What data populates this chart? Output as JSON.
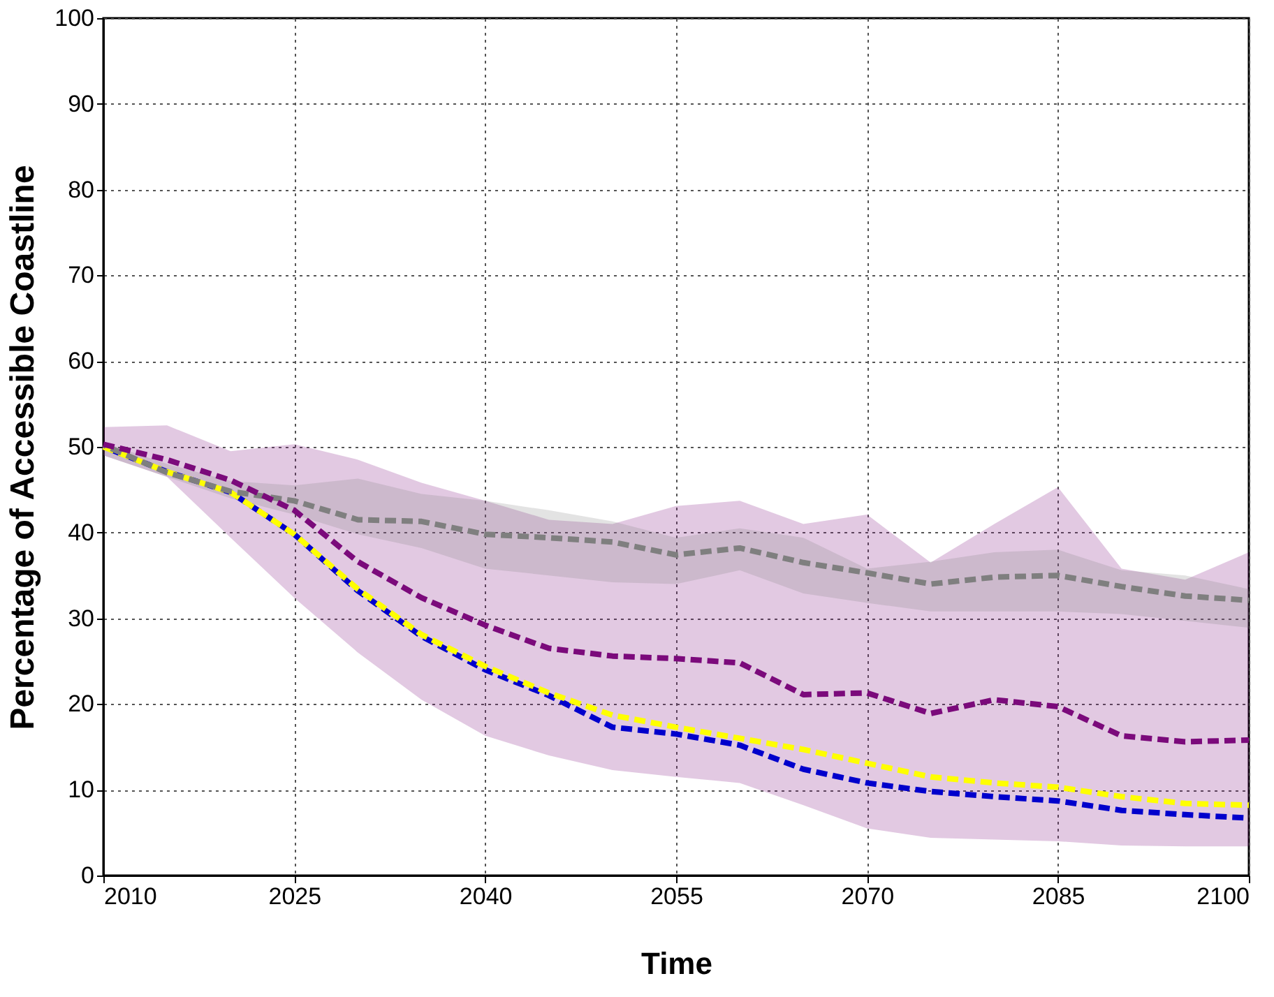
{
  "chart_data": {
    "type": "line",
    "xlabel": "Time",
    "ylabel": "Percentage of Accessible Coastline",
    "x": [
      2010,
      2015,
      2020,
      2025,
      2030,
      2035,
      2040,
      2045,
      2050,
      2055,
      2060,
      2065,
      2070,
      2075,
      2080,
      2085,
      2090,
      2095,
      2100
    ],
    "xlim": [
      2010,
      2100
    ],
    "xticks": [
      2010,
      2025,
      2040,
      2055,
      2070,
      2085,
      2100
    ],
    "ylim": [
      0,
      100
    ],
    "yticks": [
      0,
      10,
      20,
      30,
      40,
      50,
      60,
      70,
      80,
      90,
      100
    ],
    "grid": true,
    "line_style": "dashed",
    "series": [
      {
        "color": "#7b0a7b",
        "values": [
          50.3,
          48.5,
          46.1,
          42.6,
          36.6,
          32.4,
          29.2,
          26.5,
          25.6,
          25.3,
          24.8,
          21.1,
          21.3,
          18.9,
          20.5,
          19.7,
          16.3,
          15.6,
          15.8
        ],
        "lower": [
          49,
          46.5,
          39.4,
          32.4,
          26,
          20.5,
          16.3,
          14,
          12.3,
          11.5,
          10.8,
          8.2,
          5.5,
          4.4,
          4.2,
          4,
          3.5,
          3.4,
          3.4
        ],
        "upper": [
          52.3,
          52.5,
          49.5,
          50.3,
          48.5,
          45.8,
          43.7,
          41.5,
          41,
          43.1,
          43.7,
          41,
          42.1,
          36.5,
          41,
          45.3,
          35.8,
          34.5,
          37.7
        ]
      },
      {
        "color": "#7f7f7f",
        "values": [
          50.2,
          47,
          44.8,
          43.7,
          41.5,
          41.3,
          39.8,
          39.4,
          38.9,
          37.4,
          38.2,
          36.5,
          35.3,
          34,
          34.8,
          35,
          33.7,
          32.6,
          32.1
        ],
        "lower": [
          49,
          46.5,
          44,
          42.1,
          39.8,
          38.2,
          35.8,
          35,
          34.2,
          34,
          35.6,
          32.9,
          31.8,
          30.8,
          30.8,
          30.8,
          30.5,
          29.7,
          28.9
        ],
        "upper": [
          50.5,
          48,
          46,
          45.5,
          46.3,
          44.5,
          43.7,
          42.6,
          41.3,
          39.4,
          40.5,
          39.4,
          35.8,
          36.6,
          37.7,
          38,
          35.6,
          35,
          33.4
        ]
      },
      {
        "color": "#ffff00",
        "values": [
          50,
          47.1,
          44.7,
          39.8,
          33.4,
          28.1,
          24.4,
          21.3,
          18.7,
          17.3,
          16,
          14.7,
          13.1,
          11.5,
          10.8,
          10.3,
          9.2,
          8.4,
          8.2
        ]
      },
      {
        "color": "#0000cc",
        "values": [
          50,
          47.1,
          44.7,
          39.8,
          33.2,
          27.9,
          24,
          21,
          17.3,
          16.5,
          15.2,
          12.4,
          10.8,
          9.8,
          9.2,
          8.7,
          7.6,
          7.1,
          6.7
        ]
      }
    ]
  }
}
